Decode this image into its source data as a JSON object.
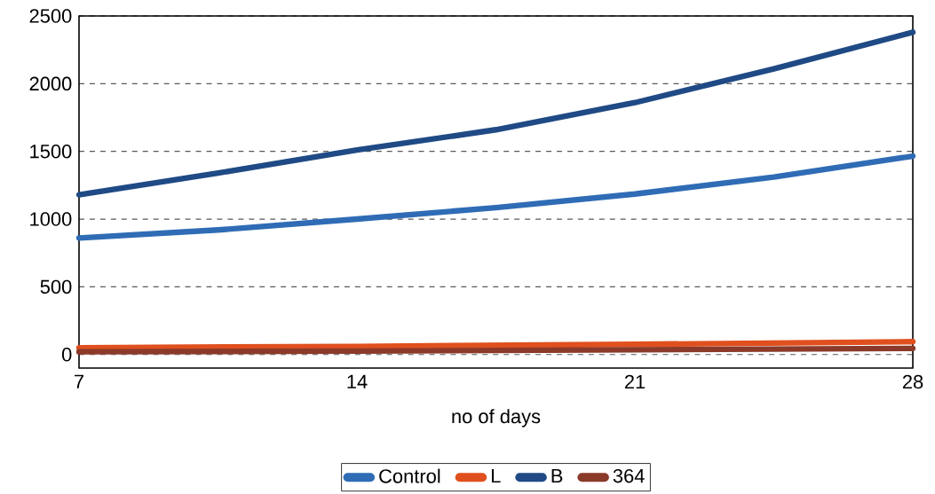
{
  "chart_data": {
    "type": "line",
    "xlabel": "no of days",
    "x": [
      7,
      10.5,
      14,
      17.5,
      21,
      24.5,
      28
    ],
    "series": [
      {
        "name": "Control",
        "color": "#2f6cb5",
        "values": [
          860,
          920,
          1000,
          1085,
          1185,
          1310,
          1465
        ]
      },
      {
        "name": "L",
        "color": "#e0501e",
        "x": [
          7,
          14,
          21,
          28
        ],
        "values": [
          50,
          60,
          75,
          95
        ]
      },
      {
        "name": "B",
        "color": "#1f4a85",
        "values": [
          1180,
          1340,
          1510,
          1660,
          1860,
          2110,
          2380
        ]
      },
      {
        "name": "364",
        "color": "#8b3a2a",
        "x": [
          7,
          14,
          21,
          28
        ],
        "values": [
          20,
          25,
          35,
          45
        ]
      }
    ],
    "xlim": [
      7,
      28
    ],
    "xticks": [
      7,
      14,
      21,
      28
    ],
    "ylim": [
      -100,
      2500
    ],
    "yticks": [
      0,
      500,
      1000,
      1500,
      2000,
      2500
    ],
    "grid": "y",
    "legend": "bottom",
    "marker": "none",
    "line_style": "solid"
  }
}
